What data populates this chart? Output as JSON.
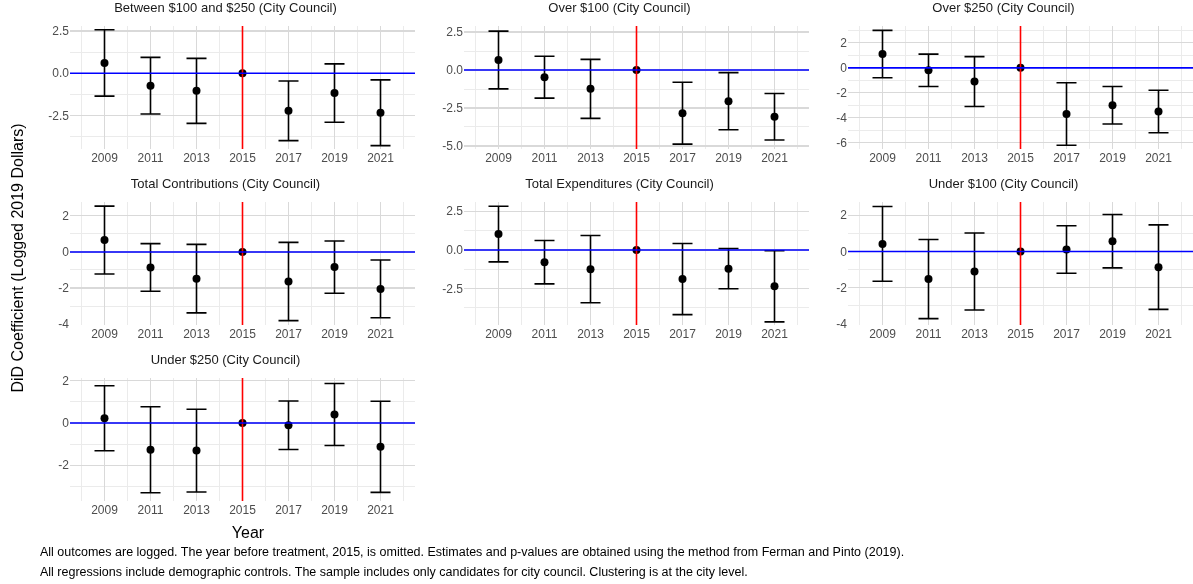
{
  "chart_data": [
    {
      "type": "scatter",
      "title": "Between $100 and $250 (City Council)",
      "x": [
        2009,
        2011,
        2013,
        2015,
        2017,
        2019,
        2021
      ],
      "values": [
        0.61,
        -0.74,
        -1.05,
        0,
        -2.23,
        -1.18,
        -2.35
      ],
      "errors": [
        1.97,
        1.68,
        1.93,
        null,
        1.77,
        1.73,
        1.95
      ],
      "color": "#000000",
      "marker": "circle",
      "xlim": [
        2007.5,
        2022.5
      ],
      "xticks": [
        2009,
        2011,
        2013,
        2015,
        2017,
        2019,
        2021
      ],
      "ylim": [
        -4.5,
        2.8
      ],
      "yticks": [
        {
          "value": -2.5,
          "label": "-2.5"
        },
        {
          "value": 0,
          "label": "0.0"
        },
        {
          "value": 2.5,
          "label": "2.5"
        }
      ],
      "grid": true,
      "ref_lines": [
        {
          "axis": "x",
          "value": 2015,
          "color": "#ff0000"
        },
        {
          "axis": "y",
          "value": 0,
          "color": "#0000ff"
        }
      ]
    },
    {
      "type": "scatter",
      "title": "Over $100 (City Council)",
      "x": [
        2009,
        2011,
        2013,
        2015,
        2017,
        2019,
        2021
      ],
      "values": [
        0.66,
        -0.47,
        -1.24,
        0,
        -2.84,
        -2.05,
        -3.08
      ],
      "errors": [
        1.9,
        1.38,
        1.94,
        null,
        2.04,
        1.88,
        1.53
      ],
      "color": "#000000",
      "marker": "circle",
      "xlim": [
        2007.5,
        2022.5
      ],
      "xticks": [
        2009,
        2011,
        2013,
        2015,
        2017,
        2019,
        2021
      ],
      "ylim": [
        -5.2,
        2.9
      ],
      "yticks": [
        {
          "value": -5,
          "label": "-5.0"
        },
        {
          "value": -2.5,
          "label": "-2.5"
        },
        {
          "value": 0,
          "label": "0.0"
        },
        {
          "value": 2.5,
          "label": "2.5"
        }
      ],
      "grid": true,
      "ref_lines": [
        {
          "axis": "x",
          "value": 2015,
          "color": "#ff0000"
        },
        {
          "axis": "y",
          "value": 0,
          "color": "#0000ff"
        }
      ]
    },
    {
      "type": "scatter",
      "title": "Over $250 (City Council)",
      "x": [
        2009,
        2011,
        2013,
        2015,
        2017,
        2019,
        2021
      ],
      "values": [
        1.1,
        -0.2,
        -1.1,
        0,
        -3.7,
        -3.0,
        -3.5
      ],
      "errors": [
        1.9,
        1.3,
        2.0,
        null,
        2.5,
        1.5,
        1.7
      ],
      "color": "#000000",
      "marker": "circle",
      "xlim": [
        2007.5,
        2022.5
      ],
      "xticks": [
        2009,
        2011,
        2013,
        2015,
        2017,
        2019,
        2021
      ],
      "ylim": [
        -6.5,
        3.35
      ],
      "yticks": [
        -6,
        -4,
        -2,
        0,
        2
      ],
      "grid": true,
      "ref_lines": [
        {
          "axis": "x",
          "value": 2015,
          "color": "#ff0000"
        },
        {
          "axis": "y",
          "value": 0,
          "color": "#0000ff"
        }
      ]
    },
    {
      "type": "scatter",
      "title": "Total Contributions (City Council)",
      "ylabel": "DiD Coefficient (Logged 2019 Dollars)",
      "x": [
        2009,
        2011,
        2013,
        2015,
        2017,
        2019,
        2021
      ],
      "values": [
        0.66,
        -0.86,
        -1.48,
        0,
        -1.64,
        -0.84,
        -2.05
      ],
      "errors": [
        1.88,
        1.32,
        1.9,
        null,
        2.17,
        1.45,
        1.6
      ],
      "color": "#000000",
      "marker": "circle",
      "xlim": [
        2007.5,
        2022.5
      ],
      "xticks": [
        2009,
        2011,
        2013,
        2015,
        2017,
        2019,
        2021
      ],
      "ylim": [
        -4.05,
        2.77
      ],
      "yticks": [
        -4,
        -2,
        0,
        2
      ],
      "grid": true,
      "ref_lines": [
        {
          "axis": "x",
          "value": 2015,
          "color": "#ff0000"
        },
        {
          "axis": "y",
          "value": 0,
          "color": "#0000ff"
        }
      ]
    },
    {
      "type": "scatter",
      "title": "Total Expenditures (City Council)",
      "x": [
        2009,
        2011,
        2013,
        2015,
        2017,
        2019,
        2021
      ],
      "values": [
        1.03,
        -0.79,
        -1.24,
        0,
        -1.88,
        -1.21,
        -2.35
      ],
      "errors": [
        1.8,
        1.4,
        2.17,
        null,
        2.3,
        1.3,
        2.3
      ],
      "color": "#000000",
      "marker": "circle",
      "xlim": [
        2007.5,
        2022.5
      ],
      "xticks": [
        2009,
        2011,
        2013,
        2015,
        2017,
        2019,
        2021
      ],
      "ylim": [
        -4.85,
        3.1
      ],
      "yticks": [
        {
          "value": -2.5,
          "label": "-2.5"
        },
        {
          "value": 0,
          "label": "0.0"
        },
        {
          "value": 2.5,
          "label": "2.5"
        }
      ],
      "grid": true,
      "ref_lines": [
        {
          "axis": "x",
          "value": 2015,
          "color": "#ff0000"
        },
        {
          "axis": "y",
          "value": 0,
          "color": "#0000ff"
        }
      ]
    },
    {
      "type": "scatter",
      "title": "Under $100 (City Council)",
      "x": [
        2009,
        2011,
        2013,
        2015,
        2017,
        2019,
        2021
      ],
      "values": [
        0.42,
        -1.52,
        -1.1,
        0,
        0.11,
        0.57,
        -0.86
      ],
      "errors": [
        2.06,
        2.18,
        2.12,
        null,
        1.31,
        1.47,
        2.33
      ],
      "color": "#000000",
      "marker": "circle",
      "xlim": [
        2007.5,
        2022.5
      ],
      "xticks": [
        2009,
        2011,
        2013,
        2015,
        2017,
        2019,
        2021
      ],
      "ylim": [
        -4.05,
        2.73
      ],
      "yticks": [
        -4,
        -2,
        0,
        2
      ],
      "grid": true,
      "ref_lines": [
        {
          "axis": "x",
          "value": 2015,
          "color": "#ff0000"
        },
        {
          "axis": "y",
          "value": 0,
          "color": "#0000ff"
        }
      ]
    },
    {
      "type": "scatter",
      "title": "Under $250 (City Council)",
      "x": [
        2009,
        2011,
        2013,
        2015,
        2017,
        2019,
        2021
      ],
      "values": [
        0.22,
        -1.27,
        -1.31,
        0,
        -0.11,
        0.4,
        -1.13
      ],
      "errors": [
        1.54,
        2.04,
        1.96,
        null,
        1.15,
        1.47,
        2.16
      ],
      "color": "#000000",
      "marker": "circle",
      "xlim": [
        2007.5,
        2022.5
      ],
      "xticks": [
        2009,
        2011,
        2013,
        2015,
        2017,
        2019,
        2021
      ],
      "ylim": [
        -3.7,
        2.13
      ],
      "yticks": [
        -2,
        0,
        2
      ],
      "grid": true,
      "ref_lines": [
        {
          "axis": "x",
          "value": 2015,
          "color": "#ff0000"
        },
        {
          "axis": "y",
          "value": 0,
          "color": "#0000ff"
        }
      ],
      "xlabel": "Year",
      "annotations": [
        "All outcomes are logged. The year before treatment, 2015, is omitted. Estimates and p-values are obtained using the method from Ferman and Pinto (2019).",
        "All regressions include demographic controls. The sample includes only candidates for city council. Clustering is at the city level."
      ]
    }
  ]
}
